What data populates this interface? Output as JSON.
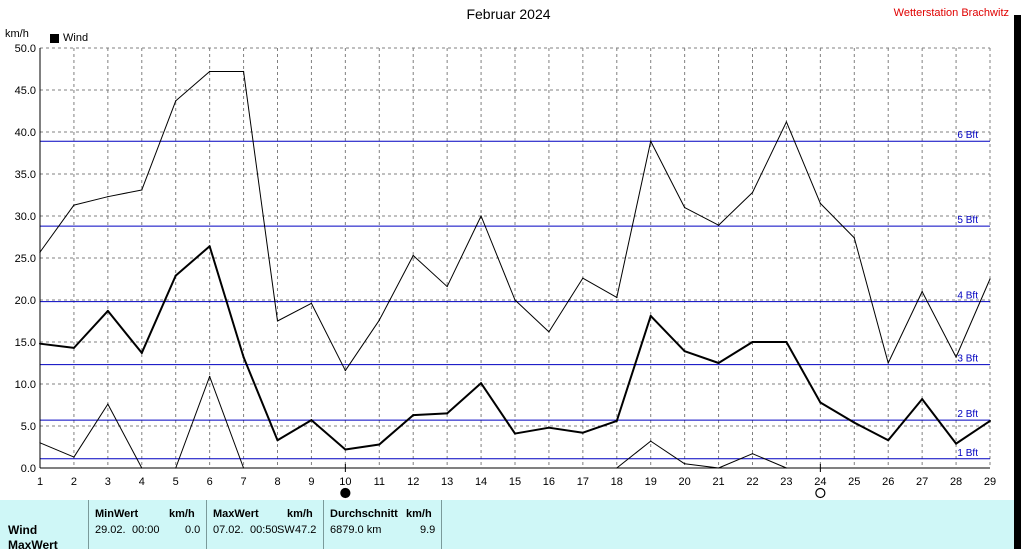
{
  "header": {
    "title": "Februar 2024",
    "station": "Wetterstation Brachwitz",
    "unit": "km/h",
    "legend": "Wind"
  },
  "chart_data": {
    "type": "line",
    "title": "Februar 2024",
    "ylabel": "km/h",
    "ylim": [
      0,
      50
    ],
    "xlim": [
      1,
      29
    ],
    "grid": true,
    "legend_position": "top-left",
    "x_ticks": [
      1,
      2,
      3,
      4,
      5,
      6,
      7,
      8,
      9,
      10,
      11,
      12,
      13,
      14,
      15,
      16,
      17,
      18,
      19,
      20,
      21,
      22,
      23,
      24,
      25,
      26,
      27,
      28,
      29
    ],
    "y_ticks": [
      "0.0",
      "5.0",
      "10.0",
      "15.0",
      "20.0",
      "25.0",
      "30.0",
      "35.0",
      "40.0",
      "45.0",
      "50.0"
    ],
    "series": [
      {
        "name": "Wind",
        "role": "mean",
        "x": [
          1,
          2,
          3,
          4,
          5,
          6,
          7,
          8,
          9,
          10,
          11,
          12,
          13,
          14,
          15,
          16,
          17,
          18,
          19,
          20,
          21,
          22,
          23,
          24,
          25,
          26,
          27,
          28,
          29
        ],
        "values": [
          14.8,
          14.3,
          18.7,
          13.7,
          22.9,
          26.4,
          13.2,
          3.3,
          5.7,
          2.2,
          2.8,
          6.3,
          6.5,
          10.1,
          4.1,
          4.8,
          4.2,
          5.6,
          18.1,
          13.9,
          12.5,
          15.0,
          15.0,
          7.8,
          5.4,
          3.3,
          8.2,
          2.9,
          5.6
        ]
      },
      {
        "role": "max",
        "x": [
          1,
          2,
          3,
          4,
          5,
          6,
          7,
          8,
          9,
          10,
          11,
          12,
          13,
          14,
          15,
          16,
          17,
          18,
          19,
          20,
          21,
          22,
          23,
          24,
          25,
          26,
          27,
          28,
          29
        ],
        "values": [
          25.7,
          31.3,
          32.3,
          33.1,
          43.7,
          47.2,
          47.2,
          17.5,
          19.6,
          11.6,
          17.6,
          25.3,
          21.6,
          30.0,
          20.0,
          16.2,
          22.6,
          20.3,
          38.9,
          31.0,
          28.9,
          32.8,
          41.2,
          31.5,
          27.4,
          12.5,
          21.0,
          13.2,
          22.5
        ]
      },
      {
        "role": "min",
        "x": [
          1,
          2,
          3,
          4,
          5,
          6,
          7,
          18,
          19,
          20,
          21,
          22,
          23
        ],
        "values": [
          3.0,
          1.3,
          7.6,
          0.0,
          0.0,
          10.9,
          0.0,
          0.0,
          3.2,
          0.5,
          0.0,
          1.7,
          0.0
        ]
      }
    ],
    "beaufort_lines": [
      {
        "label": "1 Bft",
        "value": 1.1
      },
      {
        "label": "2 Bft",
        "value": 5.7
      },
      {
        "label": "3 Bft",
        "value": 12.3
      },
      {
        "label": "4 Bft",
        "value": 19.8
      },
      {
        "label": "5 Bft",
        "value": 28.8
      },
      {
        "label": "6 Bft",
        "value": 38.9
      }
    ],
    "moon_phases": [
      {
        "day": 10,
        "phase": "new"
      },
      {
        "day": 24,
        "phase": "full"
      }
    ],
    "colors": {
      "series": "#000000",
      "beaufort": "#0000c0",
      "grid": "#808080",
      "station": "#e00000",
      "stats_bg": "#cff7f7"
    }
  },
  "stats": {
    "rows": [
      "Wind",
      "MaxWert"
    ],
    "min": {
      "header": "MinWert",
      "unit": "km/h",
      "date": "29.02.",
      "time": "00:00",
      "value": "0.0"
    },
    "max": {
      "header": "MaxWert",
      "unit": "km/h",
      "date": "07.02.",
      "time": "00:50",
      "dir": "SW",
      "value": "47.2"
    },
    "avg": {
      "header": "Durchschnitt",
      "unit": "km/h",
      "distance": "6879.0 km",
      "value": "9.9"
    }
  }
}
